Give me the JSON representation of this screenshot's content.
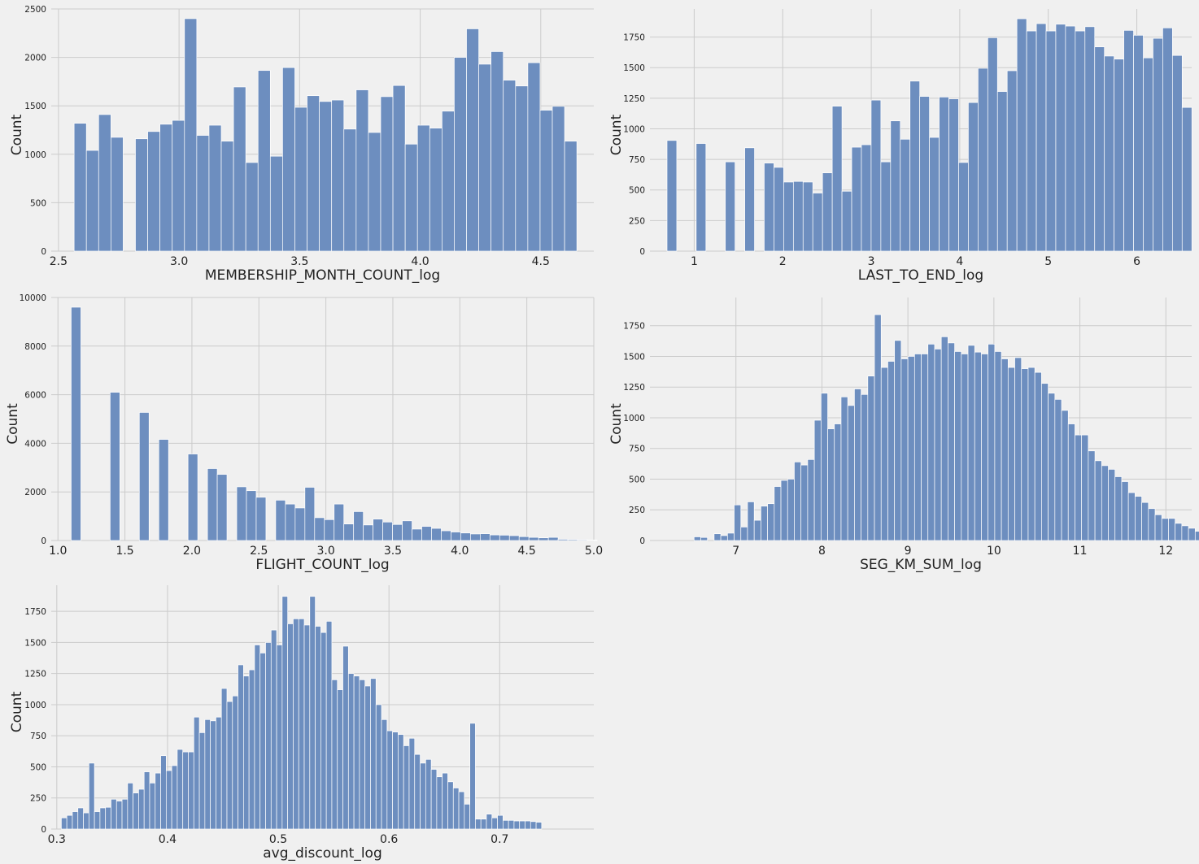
{
  "chart_data": [
    {
      "type": "bar",
      "xlabel": "MEMBERSHIP_MONTH_COUNT_log",
      "ylabel": "Count",
      "xlim": [
        2.47,
        4.72
      ],
      "ylim": [
        0,
        2500
      ],
      "xticks": [
        2.5,
        3.0,
        3.5,
        4.0,
        4.5
      ],
      "xtick_labels": [
        "2.5",
        "3.0",
        "3.5",
        "4.0",
        "4.5"
      ],
      "yticks": [
        0,
        500,
        1000,
        1500,
        2000,
        2500
      ],
      "bin_start": 2.5649,
      "bin_width": 0.05085,
      "values": [
        1320,
        1040,
        1410,
        1175,
        0,
        1160,
        1235,
        1310,
        1350,
        2400,
        1195,
        1300,
        1135,
        1695,
        915,
        1865,
        980,
        1895,
        1485,
        1605,
        1545,
        1560,
        1260,
        1665,
        1225,
        1595,
        1710,
        1105,
        1300,
        1270,
        1445,
        2000,
        2295,
        1930,
        2060,
        1765,
        1705,
        1945,
        1455,
        1495,
        1135
      ]
    },
    {
      "type": "bar",
      "xlabel": "LAST_TO_END_log",
      "ylabel": "Count",
      "xlim": [
        0.5,
        6.62
      ],
      "ylim": [
        0,
        1980
      ],
      "xticks": [
        1,
        2,
        3,
        4,
        5,
        6
      ],
      "xtick_labels": [
        "1",
        "2",
        "3",
        "4",
        "5",
        "6"
      ],
      "yticks": [
        0,
        250,
        500,
        750,
        1000,
        1250,
        1500,
        1750
      ],
      "bin_start": 0.693,
      "bin_width": 0.1098,
      "values": [
        905,
        0,
        0,
        880,
        0,
        0,
        730,
        0,
        845,
        0,
        720,
        685,
        565,
        570,
        565,
        475,
        640,
        1185,
        490,
        850,
        870,
        1235,
        730,
        1065,
        915,
        1390,
        1265,
        930,
        1260,
        1245,
        725,
        1215,
        1495,
        1745,
        1305,
        1475,
        1900,
        1800,
        1860,
        1800,
        1855,
        1840,
        1800,
        1835,
        1670,
        1595,
        1570,
        1805,
        1765,
        1580,
        1740,
        1825,
        1600,
        1175
      ]
    },
    {
      "type": "bar",
      "xlabel": "FLIGHT_COUNT_log",
      "ylabel": "Count",
      "xlim": [
        0.95,
        5.0
      ],
      "ylim": [
        0,
        10000
      ],
      "xticks": [
        1.0,
        1.5,
        2.0,
        2.5,
        3.0,
        3.5,
        4.0,
        4.5,
        5.0
      ],
      "xtick_labels": [
        "1.0",
        "1.5",
        "2.0",
        "2.5",
        "3.0",
        "3.5",
        "4.0",
        "4.5",
        "5.0"
      ],
      "yticks": [
        0,
        2000,
        4000,
        6000,
        8000,
        10000
      ],
      "bin_start": 1.0986,
      "bin_width": 0.0727,
      "values": [
        9600,
        0,
        0,
        0,
        6100,
        0,
        0,
        5270,
        0,
        4160,
        0,
        0,
        3560,
        0,
        2960,
        2720,
        0,
        2210,
        2050,
        1780,
        0,
        1660,
        1500,
        1340,
        2190,
        940,
        860,
        1500,
        680,
        1190,
        640,
        880,
        760,
        660,
        810,
        470,
        580,
        500,
        400,
        350,
        310,
        270,
        280,
        230,
        220,
        200,
        160,
        130,
        110,
        130,
        50,
        40,
        30,
        20
      ]
    },
    {
      "type": "bar",
      "xlabel": "SEG_KM_SUM_log",
      "ylabel": "Count",
      "xlim": [
        6.0,
        12.3
      ],
      "ylim": [
        0,
        1980
      ],
      "xticks": [
        7,
        8,
        9,
        10,
        11,
        12
      ],
      "xtick_labels": [
        "7",
        "8",
        "9",
        "10",
        "11",
        "12"
      ],
      "yticks": [
        0,
        250,
        500,
        750,
        1000,
        1250,
        1500,
        1750
      ],
      "bin_start": 6.5133,
      "bin_width": 0.0777,
      "values": [
        30,
        25,
        0,
        55,
        40,
        60,
        290,
        110,
        315,
        165,
        280,
        300,
        440,
        490,
        500,
        640,
        615,
        660,
        980,
        1200,
        910,
        950,
        1170,
        1100,
        1235,
        1190,
        1340,
        1840,
        1410,
        1460,
        1630,
        1480,
        1500,
        1520,
        1520,
        1600,
        1560,
        1660,
        1610,
        1540,
        1520,
        1590,
        1535,
        1520,
        1600,
        1540,
        1480,
        1410,
        1490,
        1400,
        1410,
        1370,
        1280,
        1200,
        1150,
        1060,
        950,
        860,
        860,
        730,
        650,
        610,
        580,
        520,
        480,
        390,
        360,
        310,
        260,
        210,
        180,
        180,
        140,
        120,
        100,
        75,
        50,
        40,
        30,
        20,
        10
      ]
    },
    {
      "type": "bar",
      "xlabel": "avg_discount_log",
      "ylabel": "Count",
      "xlim": [
        0.295,
        0.785
      ],
      "ylim": [
        0,
        1960
      ],
      "xticks": [
        0.3,
        0.4,
        0.5,
        0.6,
        0.7
      ],
      "xtick_labels": [
        "0.3",
        "0.4",
        "0.5",
        "0.6",
        "0.7"
      ],
      "yticks": [
        0,
        250,
        500,
        750,
        1000,
        1250,
        1500,
        1750
      ],
      "bin_start": 0.3041,
      "bin_width": 0.004986,
      "values": [
        90,
        110,
        140,
        170,
        130,
        530,
        140,
        170,
        175,
        240,
        225,
        240,
        370,
        290,
        320,
        460,
        370,
        450,
        590,
        470,
        510,
        640,
        620,
        620,
        900,
        775,
        880,
        870,
        900,
        1130,
        1025,
        1070,
        1320,
        1230,
        1280,
        1480,
        1415,
        1500,
        1600,
        1480,
        1870,
        1650,
        1690,
        1690,
        1640,
        1870,
        1630,
        1580,
        1670,
        1200,
        1120,
        1470,
        1250,
        1230,
        1200,
        1150,
        1210,
        1000,
        880,
        790,
        780,
        760,
        670,
        730,
        600,
        530,
        560,
        480,
        420,
        450,
        380,
        330,
        300,
        200,
        850,
        80,
        80,
        120,
        90,
        110,
        70,
        70,
        65,
        65,
        65,
        60,
        55
      ]
    }
  ],
  "style": {
    "background": "#f0f0f0",
    "bar_fill": "#6d8ebf",
    "bar_edge": "#ffffff",
    "grid_color": "#cbcbcb"
  }
}
